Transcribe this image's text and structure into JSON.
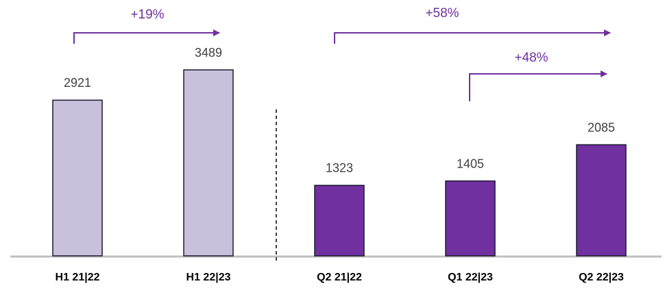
{
  "chart_data": {
    "type": "bar",
    "categories": [
      "H1 21|22",
      "H1 22|23",
      "Q2 21|22",
      "Q1 22|23",
      "Q2 22|23"
    ],
    "values": [
      2921,
      3489,
      1323,
      1405,
      2085
    ],
    "colors": [
      "#c9c0dc",
      "#c9c0dc",
      "#7030a0",
      "#7030a0",
      "#7030a0"
    ],
    "ylim": [
      0,
      4500
    ],
    "annotations": [
      "+19%",
      "+58%",
      "+48%"
    ]
  }
}
